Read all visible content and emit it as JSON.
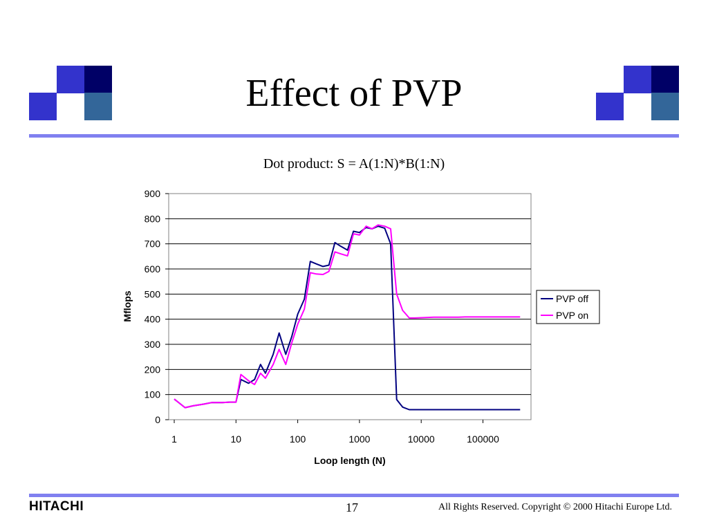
{
  "slide": {
    "title": "Effect of PVP",
    "page_number": "17",
    "logo_text": "HITACHI",
    "copyright": "All Rights Reserved. Copyright © 2000 Hitachi Europe Ltd."
  },
  "colors": {
    "accent_rule": "#8080f0",
    "square_light": "#3333cc",
    "square_dark": "#000066",
    "square_steel": "#336699",
    "pvp_off": "#000080",
    "pvp_on": "#ff00ff"
  },
  "chart_data": {
    "type": "line",
    "title": "Dot product: S = A(1:N)*B(1:N)",
    "xlabel": "Loop length (N)",
    "ylabel": "Mflops",
    "x_scale": "log",
    "xlim": [
      1,
      500000
    ],
    "ylim": [
      0,
      900
    ],
    "x_ticks": [
      "1",
      "10",
      "100",
      "1000",
      "10000",
      "100000"
    ],
    "y_ticks": [
      "0",
      "100",
      "200",
      "300",
      "400",
      "500",
      "600",
      "700",
      "800",
      "900"
    ],
    "grid": "horizontal",
    "legend_position": "right",
    "x": [
      1,
      1.5,
      2,
      3,
      4,
      5,
      6,
      8,
      10,
      12,
      16,
      20,
      25,
      30,
      40,
      50,
      64,
      80,
      100,
      128,
      160,
      200,
      256,
      320,
      400,
      500,
      640,
      800,
      1000,
      1280,
      1600,
      2000,
      2560,
      3200,
      4000,
      5000,
      6400,
      8000,
      10000,
      12800,
      16000,
      20000,
      25600,
      32000,
      40000,
      51200,
      64000,
      80000,
      100000,
      128000,
      160000,
      200000,
      256000,
      320000,
      400000
    ],
    "series": [
      {
        "name": "PVP off",
        "values": [
          82,
          48,
          55,
          62,
          68,
          68,
          68,
          70,
          70,
          160,
          145,
          160,
          220,
          185,
          260,
          345,
          260,
          330,
          420,
          480,
          630,
          620,
          610,
          615,
          705,
          690,
          675,
          750,
          745,
          765,
          760,
          770,
          762,
          700,
          80,
          50,
          40,
          40,
          40,
          40,
          40,
          40,
          40,
          40,
          40,
          40,
          40,
          40,
          40,
          40,
          40,
          40,
          40,
          40,
          40
        ]
      },
      {
        "name": "PVP on",
        "values": [
          82,
          48,
          55,
          62,
          68,
          68,
          68,
          70,
          70,
          180,
          155,
          140,
          185,
          165,
          220,
          280,
          220,
          305,
          380,
          440,
          585,
          580,
          578,
          590,
          668,
          660,
          652,
          740,
          735,
          770,
          760,
          775,
          770,
          760,
          500,
          435,
          405,
          405,
          406,
          407,
          408,
          408,
          408,
          408,
          408,
          409,
          409,
          409,
          409,
          409,
          409,
          409,
          409,
          409,
          409
        ]
      }
    ]
  }
}
